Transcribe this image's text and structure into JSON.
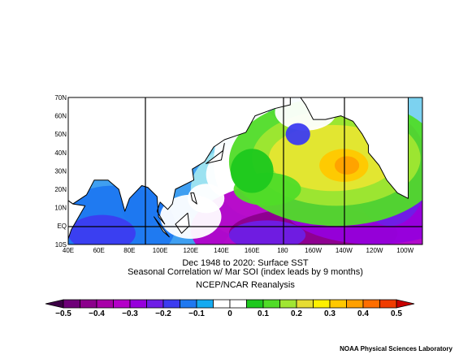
{
  "map": {
    "lat_labels": [
      "70N",
      "60N",
      "50N",
      "40N",
      "30N",
      "20N",
      "10N",
      "EQ",
      "10S"
    ],
    "lon_labels": [
      "40E",
      "60E",
      "80E",
      "100E",
      "120E",
      "140E",
      "160E",
      "180",
      "160W",
      "140W",
      "120W",
      "100W"
    ],
    "title_lines": [
      "Dec 1948 to 2020: Surface SST",
      "Seasonal Correlation w/ Mar SOI (index leads by 9 months)"
    ],
    "subtitle": "NCEP/NCAR Reanalysis",
    "colorbar": {
      "ticks": [
        -0.5,
        -0.4,
        -0.3,
        -0.2,
        -0.1,
        0,
        0.1,
        0.2,
        0.3,
        0.4,
        0.5
      ],
      "lim": [
        -0.5,
        0.5
      ],
      "under_color": "#3c0046",
      "over_color": "#c80000",
      "colors": [
        "#6e0078",
        "#8c008c",
        "#a800a8",
        "#b400c8",
        "#9600dc",
        "#6e1ee6",
        "#3c3cf0",
        "#1e78f0",
        "#14aaf0",
        "#ffffff",
        "#ffffff",
        "#1ec81e",
        "#50dc28",
        "#a0e632",
        "#e6dc32",
        "#fff000",
        "#ffc800",
        "#ffa000",
        "#ff6e00",
        "#f03c00"
      ]
    },
    "credit": "NOAA Physical Sciences Laboratory"
  }
}
